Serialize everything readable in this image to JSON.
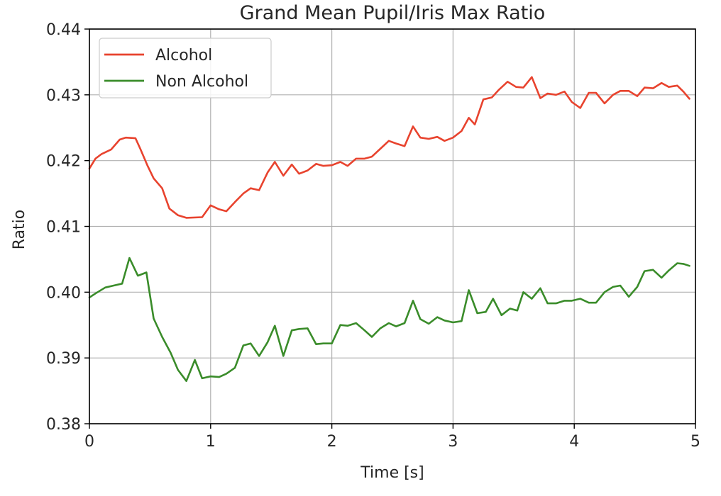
{
  "chart_data": {
    "type": "line",
    "title": "Grand Mean Pupil/Iris Max Ratio",
    "xlabel": "Time [s]",
    "ylabel": "Ratio",
    "xlim": [
      0,
      5
    ],
    "ylim": [
      0.38,
      0.44
    ],
    "x_ticks": [
      0,
      1,
      2,
      3,
      4,
      5
    ],
    "x_tick_labels": [
      "0",
      "1",
      "2",
      "3",
      "4",
      "5"
    ],
    "y_ticks": [
      0.38,
      0.39,
      0.4,
      0.41,
      0.42,
      0.43,
      0.44
    ],
    "y_tick_labels": [
      "0.38",
      "0.39",
      "0.40",
      "0.41",
      "0.42",
      "0.43",
      "0.44"
    ],
    "grid": true,
    "legend_position": "top-left",
    "series": [
      {
        "name": "Alcohol",
        "color": "#e8432e",
        "x": [
          0.0,
          0.05,
          0.1,
          0.18,
          0.25,
          0.3,
          0.38,
          0.42,
          0.48,
          0.53,
          0.6,
          0.66,
          0.73,
          0.8,
          0.93,
          1.0,
          1.07,
          1.13,
          1.2,
          1.27,
          1.33,
          1.4,
          1.47,
          1.53,
          1.6,
          1.67,
          1.73,
          1.8,
          1.87,
          1.93,
          2.0,
          2.07,
          2.13,
          2.2,
          2.27,
          2.33,
          2.4,
          2.47,
          2.53,
          2.6,
          2.67,
          2.73,
          2.8,
          2.87,
          2.93,
          3.0,
          3.07,
          3.13,
          3.18,
          3.25,
          3.32,
          3.38,
          3.45,
          3.52,
          3.58,
          3.65,
          3.72,
          3.78,
          3.85,
          3.92,
          3.98,
          4.05,
          4.12,
          4.18,
          4.25,
          4.32,
          4.38,
          4.45,
          4.52,
          4.58,
          4.65,
          4.72,
          4.78,
          4.85,
          4.9,
          4.95
        ],
        "y": [
          0.4188,
          0.4203,
          0.421,
          0.4217,
          0.4232,
          0.4235,
          0.4234,
          0.4218,
          0.4192,
          0.4173,
          0.4158,
          0.4127,
          0.4117,
          0.4113,
          0.4114,
          0.4132,
          0.4126,
          0.4123,
          0.4137,
          0.415,
          0.4158,
          0.4155,
          0.4182,
          0.4198,
          0.4177,
          0.4194,
          0.418,
          0.4185,
          0.4195,
          0.4192,
          0.4193,
          0.4198,
          0.4192,
          0.4203,
          0.4203,
          0.4206,
          0.4218,
          0.423,
          0.4226,
          0.4222,
          0.4252,
          0.4235,
          0.4233,
          0.4236,
          0.423,
          0.4235,
          0.4245,
          0.4265,
          0.4255,
          0.4293,
          0.4296,
          0.4308,
          0.432,
          0.4312,
          0.4311,
          0.4327,
          0.4295,
          0.4302,
          0.43,
          0.4305,
          0.4289,
          0.428,
          0.4303,
          0.4303,
          0.4287,
          0.43,
          0.4306,
          0.4306,
          0.4298,
          0.4311,
          0.431,
          0.4318,
          0.4312,
          0.4314,
          0.4305,
          0.4294
        ]
      },
      {
        "name": "Non Alcohol",
        "color": "#3a8c2a",
        "x": [
          0.0,
          0.05,
          0.13,
          0.2,
          0.27,
          0.33,
          0.4,
          0.47,
          0.53,
          0.6,
          0.67,
          0.73,
          0.8,
          0.87,
          0.93,
          1.0,
          1.07,
          1.13,
          1.2,
          1.27,
          1.33,
          1.4,
          1.47,
          1.53,
          1.6,
          1.67,
          1.73,
          1.8,
          1.87,
          1.93,
          2.0,
          2.07,
          2.13,
          2.2,
          2.27,
          2.33,
          2.4,
          2.47,
          2.53,
          2.6,
          2.67,
          2.73,
          2.8,
          2.87,
          2.93,
          3.0,
          3.07,
          3.13,
          3.2,
          3.27,
          3.33,
          3.4,
          3.47,
          3.53,
          3.58,
          3.65,
          3.72,
          3.78,
          3.85,
          3.92,
          3.98,
          4.05,
          4.12,
          4.18,
          4.25,
          4.32,
          4.38,
          4.45,
          4.52,
          4.58,
          4.65,
          4.72,
          4.78,
          4.85,
          4.9,
          4.95
        ],
        "y": [
          0.3992,
          0.3998,
          0.4007,
          0.401,
          0.4013,
          0.4052,
          0.4025,
          0.403,
          0.396,
          0.3932,
          0.3908,
          0.3882,
          0.3865,
          0.3897,
          0.3869,
          0.3872,
          0.3871,
          0.3876,
          0.3885,
          0.3919,
          0.3922,
          0.3903,
          0.3924,
          0.3949,
          0.3903,
          0.3942,
          0.3944,
          0.3945,
          0.3921,
          0.3922,
          0.3922,
          0.395,
          0.3949,
          0.3953,
          0.3942,
          0.3932,
          0.3945,
          0.3953,
          0.3948,
          0.3953,
          0.3987,
          0.3959,
          0.3952,
          0.3962,
          0.3957,
          0.3954,
          0.3956,
          0.4003,
          0.3968,
          0.397,
          0.399,
          0.3965,
          0.3975,
          0.3972,
          0.4,
          0.399,
          0.4006,
          0.3983,
          0.3983,
          0.3987,
          0.3987,
          0.399,
          0.3984,
          0.3984,
          0.4,
          0.4008,
          0.401,
          0.3993,
          0.4008,
          0.4032,
          0.4034,
          0.4022,
          0.4033,
          0.4044,
          0.4043,
          0.404
        ]
      }
    ]
  }
}
